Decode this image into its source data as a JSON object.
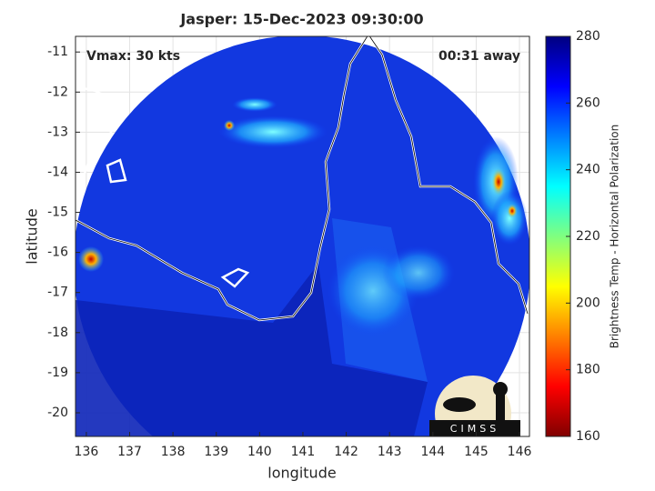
{
  "chart_data": {
    "type": "map",
    "title": "Jasper: 15-Dec-2023 09:30:00",
    "annotations": [
      "Vmax: 30 kts",
      "00:31 away"
    ],
    "xlabel": "longitude",
    "ylabel": "latitude",
    "xlim": [
      135.75,
      146.23
    ],
    "ylim": [
      -20.59,
      -10.61
    ],
    "xticks": [
      136,
      137,
      138,
      139,
      140,
      141,
      142,
      143,
      144,
      145,
      146
    ],
    "yticks": [
      -20,
      -19,
      -18,
      -17,
      -16,
      -15,
      -14,
      -13,
      -12,
      -11
    ],
    "grid": true,
    "colorbar": {
      "label": "Brightness Temp - Horizontal Polarization",
      "lim": [
        160,
        280
      ],
      "ticks": [
        160,
        180,
        200,
        220,
        240,
        260,
        280
      ],
      "colormap": "jet"
    },
    "logo": "CIMSS"
  }
}
